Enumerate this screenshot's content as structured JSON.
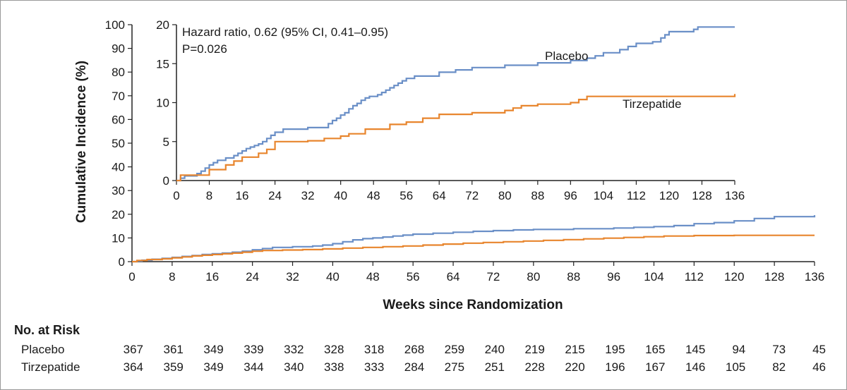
{
  "chart_data": [
    {
      "id": "main",
      "type": "line",
      "step": true,
      "ylabel": "Cumulative Incidence (%)",
      "xlabel": "Weeks since Randomization",
      "xlim": [
        0,
        136
      ],
      "ylim": [
        0,
        100
      ],
      "xticks": [
        0,
        8,
        16,
        24,
        32,
        40,
        48,
        56,
        64,
        72,
        80,
        88,
        96,
        104,
        112,
        120,
        128,
        136
      ],
      "yticks": [
        0,
        10,
        20,
        30,
        40,
        50,
        60,
        70,
        80,
        90,
        100
      ],
      "colors": {
        "Placebo": "#6a8fc7",
        "Tirzepatide": "#e8852d"
      },
      "series": [
        {
          "name": "Placebo",
          "x": [
            0,
            1,
            2,
            4,
            6,
            8,
            10,
            12,
            14,
            16,
            18,
            20,
            22,
            24,
            26,
            28,
            32,
            36,
            38,
            40,
            42,
            44,
            46,
            48,
            50,
            52,
            54,
            56,
            60,
            64,
            68,
            72,
            76,
            80,
            88,
            96,
            100,
            104,
            108,
            112,
            116,
            120,
            124,
            128,
            136
          ],
          "y": [
            0,
            0.3,
            0.6,
            1.0,
            1.4,
            1.8,
            2.2,
            2.6,
            3.0,
            3.3,
            3.6,
            4.0,
            4.4,
            5.0,
            5.5,
            6.0,
            6.3,
            6.6,
            7.0,
            7.6,
            8.4,
            9.2,
            9.7,
            10.0,
            10.4,
            10.8,
            11.2,
            11.6,
            12.0,
            12.4,
            12.8,
            13.1,
            13.4,
            13.6,
            13.9,
            14.2,
            14.5,
            14.8,
            15.2,
            16.0,
            16.5,
            17.2,
            18.2,
            19.0,
            19.6
          ]
        },
        {
          "name": "Tirzepatide",
          "x": [
            0,
            1,
            3,
            6,
            8,
            10,
            12,
            14,
            16,
            18,
            20,
            22,
            24,
            26,
            30,
            34,
            38,
            42,
            46,
            50,
            54,
            58,
            62,
            66,
            70,
            74,
            78,
            82,
            86,
            90,
            94,
            98,
            102,
            106,
            112,
            120,
            136
          ],
          "y": [
            0,
            0.5,
            0.9,
            1.2,
            1.6,
            2.0,
            2.4,
            2.7,
            3.0,
            3.3,
            3.6,
            4.0,
            4.4,
            4.7,
            4.9,
            5.1,
            5.4,
            5.7,
            6.0,
            6.3,
            6.6,
            7.0,
            7.4,
            7.8,
            8.1,
            8.4,
            8.7,
            9.0,
            9.3,
            9.6,
            9.9,
            10.2,
            10.5,
            10.8,
            11.0,
            11.1,
            11.1
          ]
        }
      ]
    },
    {
      "id": "inset",
      "type": "line",
      "step": true,
      "xlim": [
        0,
        136
      ],
      "ylim": [
        0,
        20
      ],
      "xticks": [
        0,
        8,
        16,
        24,
        32,
        40,
        48,
        56,
        64,
        72,
        80,
        88,
        96,
        104,
        112,
        120,
        128,
        136
      ],
      "yticks": [
        0,
        5,
        10,
        15,
        20
      ],
      "annotation": {
        "hazard_ratio": "Hazard ratio, 0.62 (95% CI, 0.41–0.95)",
        "p_value": "P=0.026"
      },
      "series_labels": {
        "Placebo": "Placebo",
        "Tirzepatide": "Tirzepatide"
      },
      "series": [
        {
          "name": "Placebo",
          "x": [
            0,
            1,
            2,
            5,
            6,
            7,
            8,
            9,
            10,
            12,
            14,
            15,
            16,
            17,
            18,
            19,
            20,
            21,
            22,
            23,
            24,
            26,
            32,
            37,
            38,
            39,
            40,
            41,
            42,
            43,
            44,
            45,
            46,
            47,
            49,
            50,
            51,
            52,
            53,
            54,
            55,
            56,
            58,
            64,
            68,
            72,
            80,
            88,
            96,
            100,
            102,
            104,
            108,
            110,
            112,
            116,
            118,
            119,
            120,
            126,
            127,
            136
          ],
          "y": [
            0,
            0.3,
            0.6,
            0.9,
            1.2,
            1.6,
            2.0,
            2.3,
            2.6,
            2.9,
            3.2,
            3.5,
            3.8,
            4.1,
            4.3,
            4.5,
            4.7,
            5.0,
            5.4,
            5.8,
            6.2,
            6.6,
            6.8,
            7.3,
            7.7,
            8.0,
            8.4,
            8.7,
            9.2,
            9.6,
            9.9,
            10.3,
            10.6,
            10.8,
            11.0,
            11.3,
            11.6,
            11.9,
            12.2,
            12.5,
            12.8,
            13.1,
            13.4,
            13.9,
            14.2,
            14.5,
            14.8,
            15.1,
            15.4,
            15.7,
            16.0,
            16.4,
            16.8,
            17.2,
            17.6,
            17.8,
            18.3,
            18.7,
            19.1,
            19.4,
            19.7,
            19.7
          ]
        },
        {
          "name": "Tirzepatide",
          "x": [
            0,
            1,
            8,
            12,
            14,
            16,
            20,
            22,
            24,
            32,
            36,
            40,
            42,
            46,
            52,
            56,
            60,
            64,
            72,
            80,
            82,
            84,
            88,
            96,
            98,
            100,
            136
          ],
          "y": [
            0,
            0.7,
            1.4,
            2.0,
            2.5,
            3.0,
            3.5,
            4.0,
            5.0,
            5.1,
            5.4,
            5.7,
            6.0,
            6.6,
            7.2,
            7.5,
            8.0,
            8.5,
            8.7,
            9.0,
            9.3,
            9.6,
            9.8,
            10.0,
            10.4,
            10.8,
            11.1
          ]
        }
      ]
    }
  ],
  "risk_table": {
    "title": "No. at Risk",
    "rows": [
      {
        "label": "Placebo",
        "values": [
          "367",
          "361",
          "349",
          "339",
          "332",
          "328",
          "318",
          "268",
          "259",
          "240",
          "219",
          "215",
          "195",
          "165",
          "145",
          "94",
          "73",
          "45"
        ]
      },
      {
        "label": "Tirzepatide",
        "values": [
          "364",
          "359",
          "349",
          "344",
          "340",
          "338",
          "333",
          "284",
          "275",
          "251",
          "228",
          "220",
          "196",
          "167",
          "146",
          "105",
          "82",
          "46"
        ]
      }
    ]
  }
}
